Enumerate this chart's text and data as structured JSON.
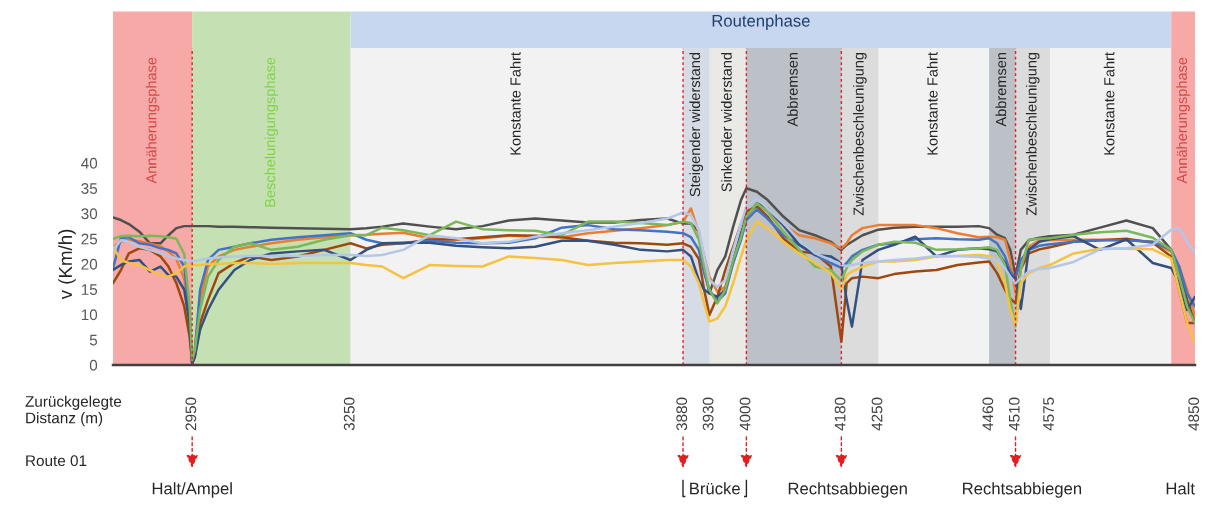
{
  "chart_data": {
    "type": "line",
    "ylabel": "v (Km/h)",
    "xlabel": "Zurückgelegte\nDistanz (m)",
    "xlim": [
      2800,
      4850
    ],
    "xticks": [
      2950,
      3250,
      3880,
      3930,
      4000,
      4180,
      4250,
      4460,
      4510,
      4575,
      4850
    ],
    "ylim": [
      0,
      40
    ],
    "yticks": [
      0,
      5,
      10,
      15,
      20,
      25,
      30,
      35,
      40
    ],
    "x": [
      2800,
      2815,
      2830,
      2850,
      2870,
      2890,
      2905,
      2920,
      2935,
      2945,
      2950,
      2955,
      2965,
      2980,
      3000,
      3030,
      3060,
      3100,
      3150,
      3200,
      3250,
      3280,
      3310,
      3350,
      3400,
      3450,
      3500,
      3550,
      3600,
      3650,
      3700,
      3750,
      3800,
      3850,
      3880,
      3895,
      3910,
      3920,
      3930,
      3945,
      3960,
      3975,
      3990,
      4000,
      4020,
      4040,
      4070,
      4100,
      4130,
      4160,
      4175,
      4180,
      4190,
      4200,
      4220,
      4250,
      4280,
      4320,
      4360,
      4400,
      4440,
      4460,
      4475,
      4490,
      4500,
      4510,
      4520,
      4535,
      4555,
      4575,
      4620,
      4670,
      4720,
      4770,
      4805,
      4820,
      4835,
      4850
    ],
    "series": [
      {
        "color": "#505050",
        "values": [
          29.2,
          28.7,
          27.9,
          26.4,
          24.1,
          24.1,
          25.7,
          27.1,
          27.5,
          27.5,
          27.5,
          27.5,
          27.5,
          27.5,
          27.4,
          27.4,
          27.3,
          27.2,
          27.1,
          27.0,
          26.9,
          27.1,
          27.4,
          28.0,
          27.4,
          26.9,
          27.5,
          28.6,
          29.0,
          28.6,
          28.2,
          28.2,
          28.7,
          29.0,
          28.0,
          28.0,
          26.4,
          19.5,
          14.2,
          18.8,
          21.5,
          27.4,
          32.7,
          35.0,
          34.3,
          32.7,
          29.4,
          26.7,
          25.7,
          24.4,
          23.1,
          22.8,
          23.8,
          24.4,
          25.7,
          26.8,
          27.2,
          27.4,
          27.4,
          27.4,
          27.5,
          27.1,
          25.8,
          25.1,
          22.8,
          17.6,
          22.8,
          24.7,
          25.2,
          25.5,
          25.8,
          27.2,
          28.6,
          27.1,
          22.8,
          18.8,
          12.9,
          8.3
        ]
      },
      {
        "color": "#ed7d31",
        "values": [
          23.3,
          24.4,
          24.8,
          24.5,
          24.0,
          23.5,
          22.5,
          21.0,
          17.0,
          8.0,
          0.3,
          2.9,
          12.9,
          19.5,
          21.5,
          22.8,
          23.4,
          24.1,
          24.8,
          25.3,
          25.7,
          25.8,
          26.0,
          26.2,
          25.1,
          24.8,
          25.1,
          25.6,
          25.4,
          25.3,
          26.1,
          26.6,
          27.1,
          27.7,
          28.3,
          31.0,
          26.1,
          21.5,
          17.5,
          14.5,
          15.5,
          20.2,
          25.4,
          29.4,
          31.7,
          30.4,
          27.7,
          25.7,
          25.1,
          24.1,
          23.3,
          23.1,
          24.1,
          25.7,
          27.1,
          27.7,
          27.7,
          27.7,
          27.1,
          26.1,
          25.3,
          25.4,
          25.3,
          24.8,
          20.8,
          14.2,
          19.0,
          23.4,
          24.7,
          24.7,
          24.8,
          24.8,
          24.7,
          24.4,
          22.4,
          19.5,
          14.9,
          9.6
        ]
      },
      {
        "color": "#9e480e",
        "values": [
          16.2,
          18.8,
          22.1,
          23.1,
          22.8,
          21.5,
          19.5,
          16.2,
          11.6,
          5.7,
          0.3,
          1.6,
          8.3,
          12.9,
          18.2,
          20.2,
          21.5,
          20.8,
          21.5,
          22.8,
          24.1,
          23.1,
          23.8,
          24.1,
          24.8,
          24.9,
          25.3,
          25.7,
          25.6,
          25.3,
          24.6,
          24.2,
          24.1,
          23.8,
          24.1,
          23.4,
          21.0,
          14.9,
          9.9,
          13.5,
          18.8,
          23.4,
          28.0,
          30.4,
          31.4,
          29.4,
          25.1,
          22.5,
          22.1,
          19.5,
          8.3,
          4.6,
          16.2,
          17.2,
          17.5,
          17.2,
          18.0,
          18.5,
          18.8,
          19.8,
          20.3,
          20.5,
          18.2,
          14.9,
          13.2,
          12.2,
          19.0,
          22.1,
          22.9,
          23.3,
          24.4,
          24.7,
          25.0,
          24.2,
          21.5,
          14.9,
          8.3,
          8.3
        ]
      },
      {
        "color": "#4472c4",
        "values": [
          19.1,
          25.1,
          25.3,
          24.1,
          23.8,
          23.1,
          22.8,
          22.1,
          19.5,
          9.6,
          0.3,
          2.9,
          14.9,
          20.8,
          22.8,
          23.4,
          24.1,
          24.8,
          25.3,
          25.7,
          26.1,
          24.8,
          24.1,
          24.1,
          24.6,
          24.2,
          24.1,
          24.2,
          25.1,
          27.2,
          27.7,
          26.9,
          26.7,
          26.4,
          26.1,
          25.3,
          22.8,
          18.2,
          14.9,
          12.6,
          14.2,
          20.2,
          24.8,
          28.7,
          30.8,
          29.0,
          25.7,
          23.8,
          21.8,
          20.2,
          19.5,
          19.2,
          20.2,
          21.5,
          22.8,
          23.8,
          24.1,
          24.9,
          25.1,
          24.9,
          24.8,
          25.1,
          24.1,
          21.5,
          18.5,
          17.2,
          20.8,
          22.8,
          23.6,
          23.9,
          24.4,
          24.7,
          24.7,
          24.4,
          22.8,
          19.5,
          14.2,
          11.6
        ]
      },
      {
        "color": "#34507e",
        "values": [
          18.8,
          19.8,
          20.5,
          20.8,
          18.5,
          19.5,
          17.8,
          17.5,
          14.9,
          8.3,
          0.3,
          1.6,
          7.0,
          10.9,
          14.9,
          18.8,
          20.8,
          22.1,
          22.5,
          22.8,
          20.8,
          22.8,
          24.1,
          24.2,
          24.2,
          23.6,
          23.3,
          23.1,
          23.4,
          24.6,
          24.6,
          23.8,
          22.8,
          22.5,
          22.8,
          21.5,
          16.8,
          14.9,
          14.2,
          13.5,
          14.9,
          20.8,
          26.1,
          29.4,
          32.0,
          31.0,
          27.7,
          23.8,
          21.8,
          21.5,
          20.5,
          19.8,
          12.9,
          7.6,
          20.8,
          22.8,
          23.8,
          25.4,
          21.5,
          22.8,
          23.1,
          22.9,
          22.5,
          20.2,
          17.8,
          17.2,
          11.1,
          22.8,
          24.4,
          24.9,
          25.5,
          22.8,
          24.9,
          20.2,
          19.2,
          16.2,
          10.9,
          13.5
        ]
      },
      {
        "color": "#7cb85a",
        "values": [
          25.0,
          25.5,
          25.6,
          25.5,
          25.6,
          25.5,
          25.3,
          25.0,
          22.0,
          12.0,
          1.0,
          2.9,
          10.9,
          17.5,
          20.8,
          23.4,
          24.1,
          22.8,
          23.4,
          24.8,
          25.7,
          25.7,
          27.2,
          26.7,
          25.7,
          28.4,
          26.9,
          26.7,
          26.6,
          25.7,
          28.4,
          28.4,
          28.1,
          27.7,
          28.4,
          28.1,
          24.8,
          19.5,
          14.9,
          12.2,
          14.9,
          20.8,
          25.4,
          29.4,
          32.0,
          30.4,
          26.4,
          22.8,
          19.5,
          18.8,
          17.2,
          16.8,
          19.2,
          20.8,
          22.5,
          23.8,
          24.4,
          24.2,
          22.8,
          22.9,
          23.1,
          23.3,
          22.8,
          19.8,
          12.9,
          7.6,
          19.0,
          24.8,
          25.0,
          25.1,
          25.8,
          26.3,
          26.6,
          25.2,
          22.8,
          17.5,
          11.6,
          8.3
        ]
      },
      {
        "color": "#f5c242",
        "values": [
          23.4,
          20.8,
          20.2,
          19.8,
          18.8,
          17.8,
          17.5,
          18.2,
          19.5,
          19.8,
          19.8,
          19.8,
          19.8,
          20.0,
          20.0,
          20.2,
          20.2,
          20.0,
          20.2,
          20.2,
          20.2,
          19.8,
          19.5,
          17.2,
          19.8,
          19.6,
          19.5,
          21.5,
          21.2,
          20.8,
          19.8,
          20.2,
          20.5,
          20.8,
          20.8,
          19.5,
          16.2,
          12.2,
          8.6,
          9.2,
          11.6,
          16.2,
          21.5,
          24.8,
          28.4,
          27.1,
          24.4,
          22.1,
          20.2,
          18.2,
          15.9,
          14.9,
          17.8,
          18.5,
          19.5,
          20.5,
          20.5,
          20.8,
          21.5,
          21.6,
          21.8,
          21.6,
          20.5,
          16.2,
          10.9,
          7.9,
          16.2,
          18.2,
          19.2,
          19.8,
          22.1,
          23.0,
          23.0,
          22.9,
          21.1,
          14.9,
          8.3,
          4.4
        ]
      },
      {
        "color": "#b4c7e7",
        "values": [
          22.8,
          24.7,
          24.4,
          23.4,
          22.8,
          22.1,
          21.6,
          21.1,
          20.8,
          20.6,
          20.6,
          20.6,
          20.8,
          21.1,
          21.3,
          21.5,
          21.6,
          21.6,
          21.6,
          21.8,
          21.8,
          21.6,
          21.8,
          22.8,
          25.7,
          25.1,
          24.1,
          24.4,
          25.4,
          26.1,
          26.7,
          27.4,
          28.1,
          29.0,
          30.2,
          29.7,
          26.7,
          21.5,
          16.8,
          15.5,
          16.8,
          22.8,
          28.1,
          31.4,
          33.0,
          31.0,
          28.1,
          24.8,
          22.1,
          20.8,
          20.2,
          19.8,
          19.6,
          19.8,
          20.2,
          20.5,
          20.8,
          21.1,
          21.6,
          21.6,
          21.4,
          21.1,
          20.8,
          19.2,
          17.5,
          16.2,
          17.2,
          18.5,
          19.0,
          19.2,
          20.4,
          22.9,
          23.1,
          23.8,
          26.8,
          27.1,
          24.4,
          22.1
        ]
      }
    ],
    "bands": [
      {
        "axis": "x",
        "from": 2800,
        "to": 2950,
        "label": "Annäherungsphase",
        "color": "#f7a9a8"
      },
      {
        "axis": "x",
        "from": 2950,
        "to": 3250,
        "label": "Beschelunigungsphase",
        "color": "#c5e0b3"
      },
      {
        "axis": "x",
        "from": 3250,
        "to": 4805,
        "label": "Routenphase",
        "color": "#c7d7ef"
      },
      {
        "axis": "x",
        "from": 3250,
        "to": 3880,
        "label": "Konstante Fahrt",
        "color": "#f2f2f2"
      },
      {
        "axis": "x",
        "from": 3880,
        "to": 3930,
        "label": "Steigender widerstand",
        "color": "#d6dce5"
      },
      {
        "axis": "x",
        "from": 3930,
        "to": 4000,
        "label": "Sinkender widerstand",
        "color": "#e9eae6"
      },
      {
        "axis": "x",
        "from": 4000,
        "to": 4180,
        "label": "Abbremsen",
        "color": "#bcc0c7"
      },
      {
        "axis": "x",
        "from": 4180,
        "to": 4250,
        "label": "Zwischenbeschleunigung",
        "color": "#dcdcdc"
      },
      {
        "axis": "x",
        "from": 4250,
        "to": 4460,
        "label": "Konstante Fahrt",
        "color": "#f2f2f2"
      },
      {
        "axis": "x",
        "from": 4460,
        "to": 4510,
        "label": "Abbremsen",
        "color": "#bcc0c7"
      },
      {
        "axis": "x",
        "from": 4510,
        "to": 4575,
        "label": "Zwischenbeschleunigung",
        "color": "#dcdcdc"
      },
      {
        "axis": "x",
        "from": 4575,
        "to": 4805,
        "label": "Konstante Fahrt",
        "color": "#f2f2f2"
      },
      {
        "axis": "x",
        "from": 4805,
        "to": 4850,
        "label": "Annäherungsphase",
        "color": "#f7a9a8"
      }
    ],
    "ref_lines": [
      {
        "axis": "x",
        "value": 2950,
        "color": "#e02020",
        "line_style": "dotted"
      },
      {
        "axis": "x",
        "value": 3880,
        "color": "#e02020",
        "line_style": "dotted"
      },
      {
        "axis": "x",
        "value": 4000,
        "color": "#e02020",
        "line_style": "dotted"
      },
      {
        "axis": "x",
        "value": 4180,
        "color": "#e02020",
        "line_style": "dotted"
      },
      {
        "axis": "x",
        "value": 4510,
        "color": "#e02020",
        "line_style": "dotted"
      }
    ],
    "annotations": [
      "Route 01",
      "Halt/Ampel",
      "Brücke",
      "Rechtsabbiegen",
      "Rechtsabbiegen",
      "Halt"
    ]
  }
}
